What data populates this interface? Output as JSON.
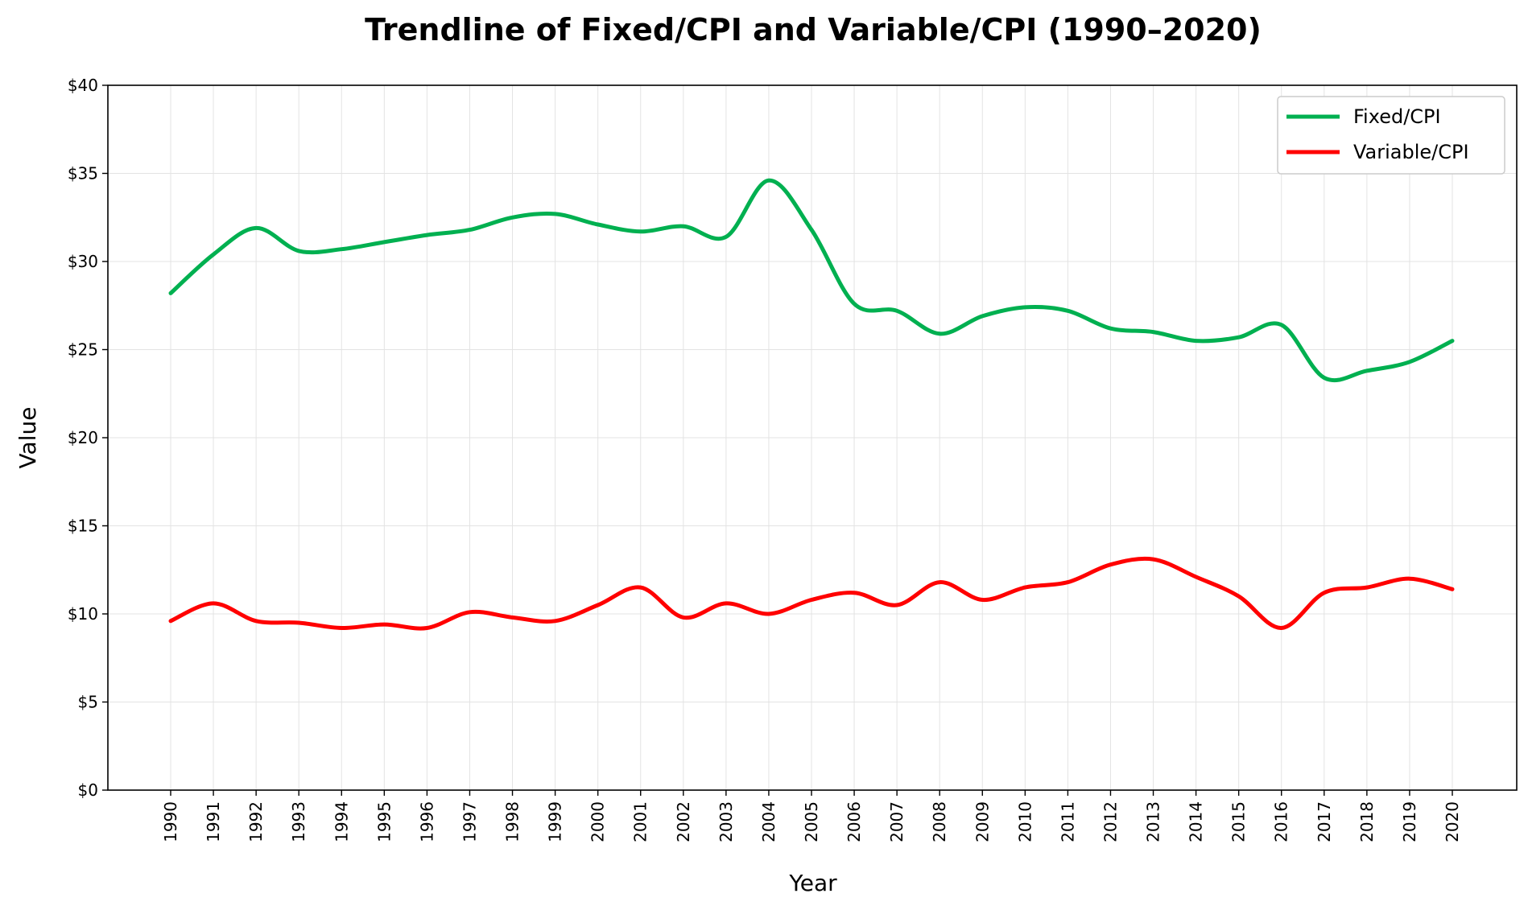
{
  "chart_data": {
    "type": "line",
    "title": "Trendline of Fixed/CPI and Variable/CPI (1990–2020)",
    "xlabel": "Year",
    "ylabel": "Value",
    "ylim": [
      0,
      40
    ],
    "yticks": [
      0,
      5,
      10,
      15,
      20,
      25,
      30,
      35,
      40
    ],
    "ytick_labels": [
      "$0",
      "$5",
      "$10",
      "$15",
      "$20",
      "$25",
      "$30",
      "$35",
      "$40"
    ],
    "x": [
      1990,
      1991,
      1992,
      1993,
      1994,
      1995,
      1996,
      1997,
      1998,
      1999,
      2000,
      2001,
      2002,
      2003,
      2004,
      2005,
      2006,
      2007,
      2008,
      2009,
      2010,
      2011,
      2012,
      2013,
      2014,
      2015,
      2016,
      2017,
      2018,
      2019,
      2020
    ],
    "grid": true,
    "legend_position": "top-right",
    "series": [
      {
        "name": "Fixed/CPI",
        "color": "#00b050",
        "values": [
          28.2,
          30.4,
          31.9,
          30.6,
          30.7,
          31.1,
          31.5,
          31.8,
          32.5,
          32.7,
          32.1,
          31.7,
          32.0,
          31.4,
          34.6,
          31.8,
          27.6,
          27.2,
          25.9,
          26.9,
          27.4,
          27.2,
          26.2,
          26.0,
          25.5,
          25.7,
          26.4,
          23.4,
          23.8,
          24.3,
          25.5
        ]
      },
      {
        "name": "Variable/CPI",
        "color": "#ff0000",
        "values": [
          9.6,
          10.6,
          9.6,
          9.5,
          9.2,
          9.4,
          9.2,
          10.1,
          9.8,
          9.6,
          10.5,
          11.5,
          9.8,
          10.6,
          10.0,
          10.8,
          11.2,
          10.5,
          11.8,
          10.8,
          11.5,
          11.8,
          12.8,
          13.1,
          12.1,
          11.0,
          9.2,
          11.2,
          11.5,
          12.0,
          11.4
        ]
      }
    ]
  }
}
